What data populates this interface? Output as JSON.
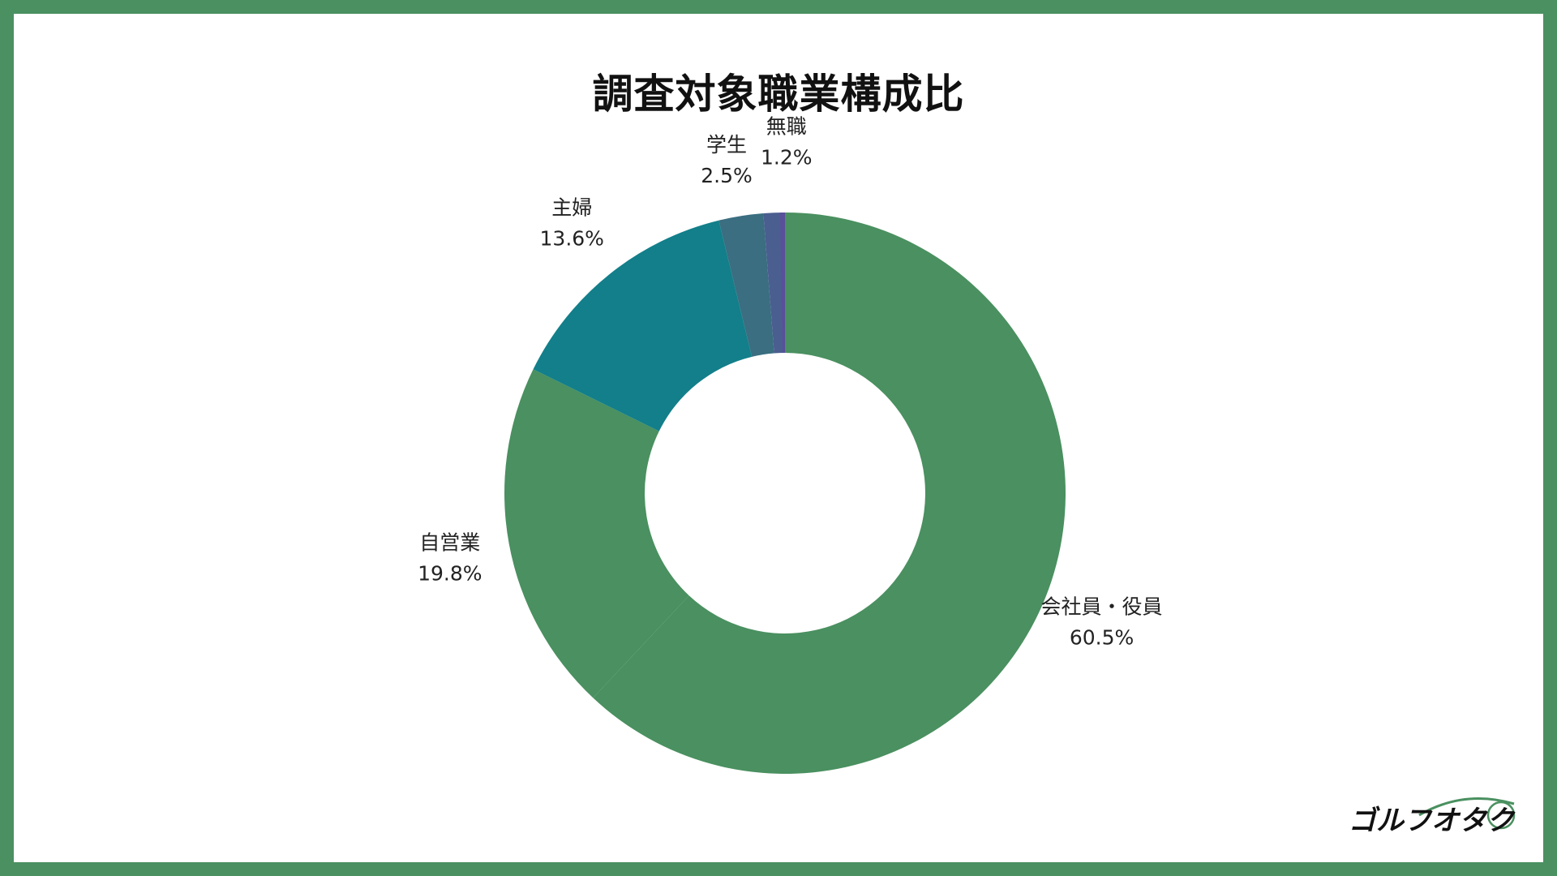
{
  "chart_data": {
    "type": "pie",
    "title": "調査対象職業構成比",
    "variant": "donut",
    "start_angle_deg": 0,
    "direction": "clockwise",
    "categories": [
      "会社員・役員",
      "自営業",
      "主婦",
      "学生",
      "無職"
    ],
    "values": [
      60.5,
      19.8,
      13.6,
      2.5,
      1.2
    ],
    "value_labels": [
      "60.5%",
      "19.8%",
      "13.6%",
      "2.5%",
      "1.2%"
    ],
    "colors": [
      "#4a9060",
      "#4a9060",
      "#127f8a",
      "#3a6e80",
      "#4b5e90"
    ],
    "legend": "none",
    "slice_labels": "outside"
  },
  "extra_slice": {
    "color": "#5a4f9a"
  },
  "logo": {
    "text": "ゴルフオタク",
    "color": "#111111",
    "accent": "#4a9060"
  }
}
